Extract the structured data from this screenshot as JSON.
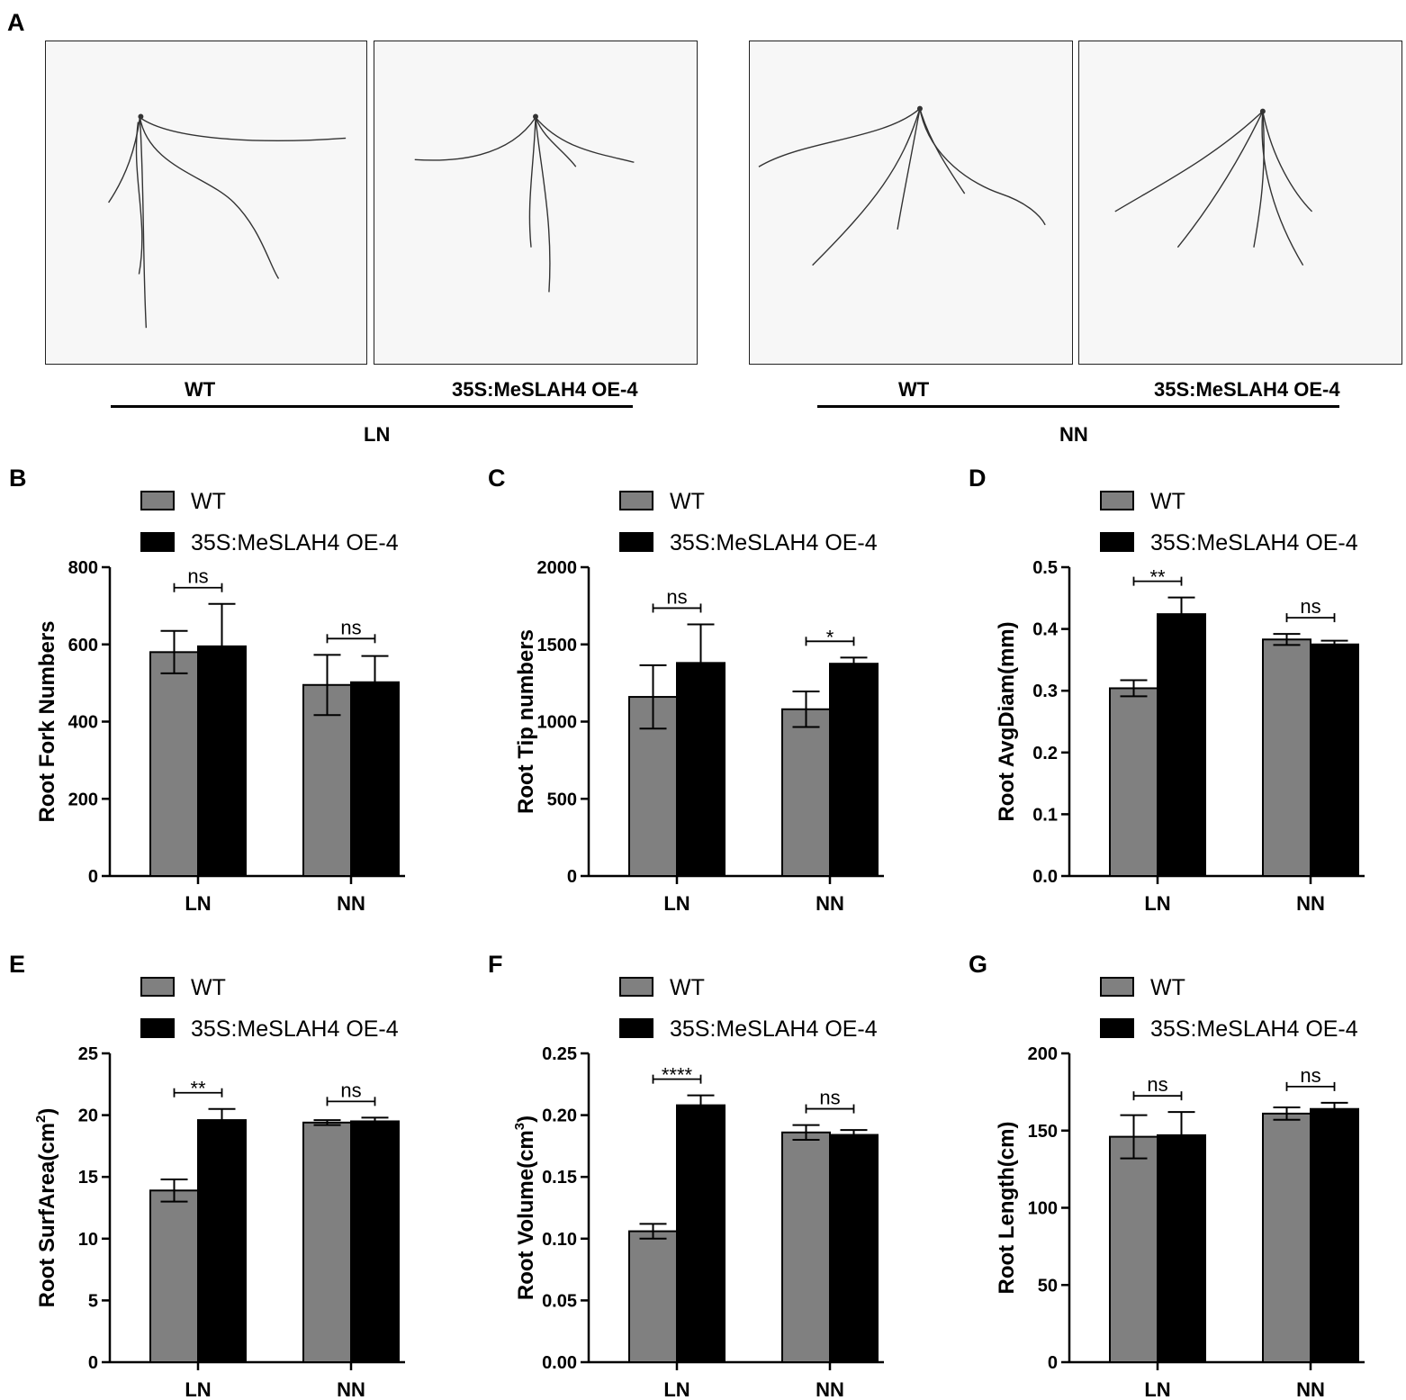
{
  "panel_a": {
    "letter": "A",
    "groups": [
      {
        "label": "LN",
        "left_caption": "WT",
        "right_caption": "35S:MeSLAH4 OE-4"
      },
      {
        "label": "NN",
        "left_caption": "WT",
        "right_caption": "35S:MeSLAH4 OE-4"
      }
    ]
  },
  "colors": {
    "wt": "#808080",
    "oe": "#000000",
    "photo_bg": "#f7f7f7",
    "root": "#333333"
  },
  "chart_data": [
    {
      "letter": "B",
      "type": "bar",
      "categories": [
        "LN",
        "NN"
      ],
      "series": [
        {
          "name": "WT",
          "values": [
            580,
            495
          ],
          "errors": [
            55,
            78
          ]
        },
        {
          "name": "35S:MeSLAH4 OE-4",
          "values": [
            595,
            502
          ],
          "errors": [
            110,
            68
          ]
        }
      ],
      "ylabel": "Root Fork Numbers",
      "ylim": [
        0,
        800
      ],
      "ticks": [
        "0",
        "200",
        "400",
        "600",
        "800"
      ],
      "significance": [
        "ns",
        "ns"
      ]
    },
    {
      "letter": "C",
      "type": "bar",
      "categories": [
        "LN",
        "NN"
      ],
      "series": [
        {
          "name": "WT",
          "values": [
            1160,
            1080
          ],
          "errors": [
            205,
            115
          ]
        },
        {
          "name": "35S:MeSLAH4 OE-4",
          "values": [
            1380,
            1375
          ],
          "errors": [
            250,
            40
          ]
        }
      ],
      "ylabel": "Root Tip numbers",
      "ylim": [
        0,
        2000
      ],
      "ticks": [
        "0",
        "500",
        "1000",
        "1500",
        "2000"
      ],
      "significance": [
        "ns",
        "*"
      ]
    },
    {
      "letter": "D",
      "type": "bar",
      "categories": [
        "LN",
        "NN"
      ],
      "series": [
        {
          "name": "WT",
          "values": [
            0.304,
            0.383
          ],
          "errors": [
            0.013,
            0.009
          ]
        },
        {
          "name": "35S:MeSLAH4 OE-4",
          "values": [
            0.424,
            0.375
          ],
          "errors": [
            0.027,
            0.006
          ]
        }
      ],
      "ylabel": "Root AvgDiam(mm)",
      "ylim": [
        0,
        0.5
      ],
      "ticks": [
        "0.0",
        "0.1",
        "0.2",
        "0.3",
        "0.4",
        "0.5"
      ],
      "significance": [
        "**",
        "ns"
      ]
    },
    {
      "letter": "E",
      "type": "bar",
      "categories": [
        "LN",
        "NN"
      ],
      "series": [
        {
          "name": "WT",
          "values": [
            13.9,
            19.4
          ],
          "errors": [
            0.9,
            0.2
          ]
        },
        {
          "name": "35S:MeSLAH4 OE-4",
          "values": [
            19.6,
            19.5
          ],
          "errors": [
            0.9,
            0.3
          ]
        }
      ],
      "ylabel": "Root SurfArea(cm",
      "ylabel_sup": "2",
      "ylabel_end": ")",
      "ylim": [
        0,
        25
      ],
      "ticks": [
        "0",
        "5",
        "10",
        "15",
        "20",
        "25"
      ],
      "significance": [
        "**",
        "ns"
      ]
    },
    {
      "letter": "F",
      "type": "bar",
      "categories": [
        "LN",
        "NN"
      ],
      "series": [
        {
          "name": "WT",
          "values": [
            0.106,
            0.186
          ],
          "errors": [
            0.006,
            0.006
          ]
        },
        {
          "name": "35S:MeSLAH4 OE-4",
          "values": [
            0.208,
            0.184
          ],
          "errors": [
            0.008,
            0.004
          ]
        }
      ],
      "ylabel": "Root Volume(cm",
      "ylabel_sup": "3",
      "ylabel_end": ")",
      "ylim": [
        0,
        0.25
      ],
      "ticks": [
        "0.00",
        "0.05",
        "0.10",
        "0.15",
        "0.20",
        "0.25"
      ],
      "significance": [
        "****",
        "ns"
      ]
    },
    {
      "letter": "G",
      "type": "bar",
      "categories": [
        "LN",
        "NN"
      ],
      "series": [
        {
          "name": "WT",
          "values": [
            146,
            161
          ],
          "errors": [
            14,
            4
          ]
        },
        {
          "name": "35S:MeSLAH4 OE-4",
          "values": [
            147,
            164
          ],
          "errors": [
            15,
            4
          ]
        }
      ],
      "ylabel": "Root Length(cm)",
      "ylim": [
        0,
        200
      ],
      "ticks": [
        "0",
        "50",
        "100",
        "150",
        "200"
      ],
      "significance": [
        "ns",
        "ns"
      ]
    }
  ]
}
